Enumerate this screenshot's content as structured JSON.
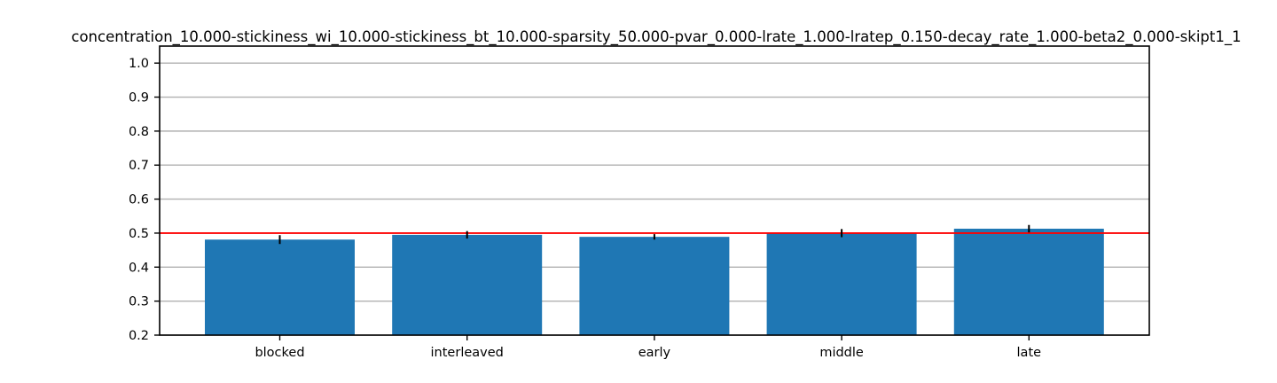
{
  "chart_data": {
    "type": "bar",
    "title": "concentration_10.000-stickiness_wi_10.000-stickiness_bt_10.000-sparsity_50.000-pvar_0.000-lrate_1.000-lratep_0.150-decay_rate_1.000-beta2_0.000-skipt1_1",
    "xlabel": "",
    "ylabel": "",
    "categories": [
      "blocked",
      "interleaved",
      "early",
      "middle",
      "late"
    ],
    "values": [
      0.481,
      0.495,
      0.489,
      0.5,
      0.513
    ],
    "errors": [
      0.013,
      0.011,
      0.008,
      0.012,
      0.011
    ],
    "ylim": [
      0.2,
      1.05
    ],
    "yticks": [
      "0.2",
      "0.3",
      "0.4",
      "0.5",
      "0.6",
      "0.7",
      "0.8",
      "0.9",
      "1.0"
    ],
    "reference_line": 0.5,
    "grid": "horizontal",
    "legend": "none",
    "colors": {
      "bar": "#1f77b4",
      "reference_line": "#ff0000",
      "grid": "#b0b0b0",
      "error_bar": "#000000",
      "axes": "#000000"
    }
  }
}
